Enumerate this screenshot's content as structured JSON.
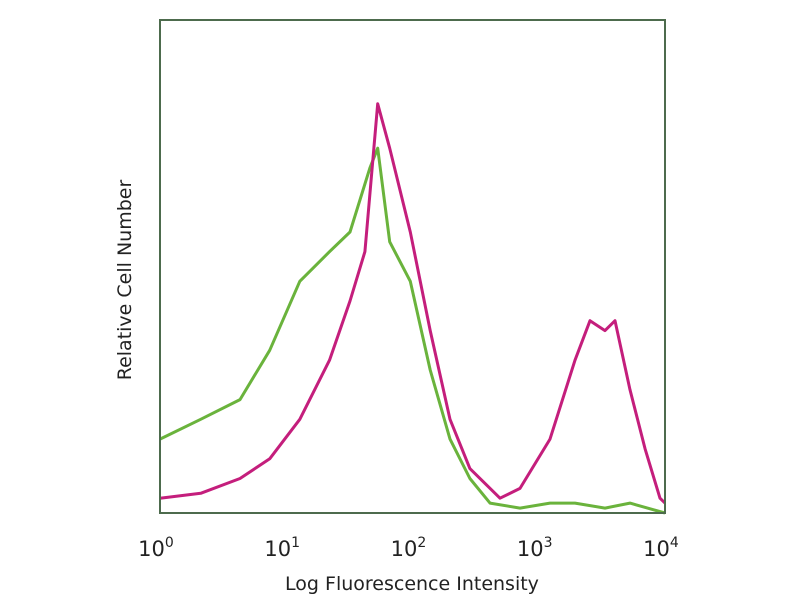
{
  "chart_data": {
    "type": "line",
    "title": "",
    "xlabel": "Log Fluorescence Intensity",
    "ylabel": "Relative Cell Number",
    "x_scale": "log",
    "xlim": [
      1,
      10000
    ],
    "ylim": [
      0,
      100
    ],
    "x_ticks": [
      {
        "base": "10",
        "exp": "0"
      },
      {
        "base": "10",
        "exp": "1"
      },
      {
        "base": "10",
        "exp": "2"
      },
      {
        "base": "10",
        "exp": "3"
      },
      {
        "base": "10",
        "exp": "4"
      }
    ],
    "grid": false,
    "legend": "none",
    "series": [
      {
        "color": "#6ab33c",
        "x": [
          1,
          2.1,
          4.3,
          7.4,
          12.8,
          22,
          32,
          46,
          53,
          66,
          96,
          138,
          198,
          285,
          411,
          710,
          1228,
          1937,
          3350,
          5284,
          10000
        ],
        "y": [
          15,
          19,
          23,
          33,
          47,
          53,
          57,
          70,
          74,
          55,
          47,
          29,
          15,
          7,
          2,
          1,
          2,
          2,
          1,
          2,
          0
        ]
      },
      {
        "color": "#c41e7c",
        "x": [
          1,
          2.1,
          4.3,
          7.4,
          12.8,
          22,
          32,
          42,
          53,
          66,
          96,
          138,
          198,
          285,
          493,
          710,
          1228,
          1937,
          2546,
          3350,
          4018,
          5284,
          6950,
          9125,
          10000
        ],
        "y": [
          3,
          4,
          7,
          11,
          19,
          31,
          43,
          53,
          83,
          74,
          57,
          37,
          19,
          9,
          3,
          5,
          15,
          31,
          39,
          37,
          39,
          25,
          13,
          3,
          2
        ]
      }
    ]
  }
}
